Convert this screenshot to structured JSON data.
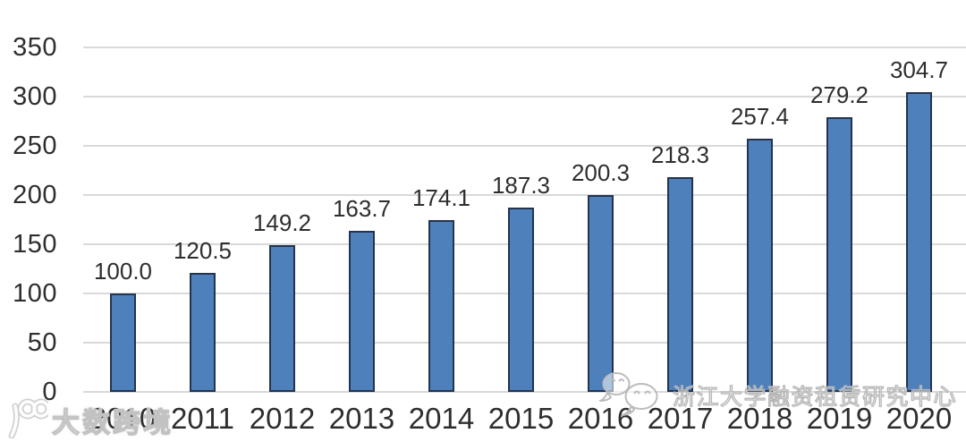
{
  "chart_data": {
    "type": "bar",
    "title": "",
    "xlabel": "",
    "ylabel": "",
    "categories": [
      "2010",
      "2011",
      "2012",
      "2013",
      "2014",
      "2015",
      "2016",
      "2017",
      "2018",
      "2019",
      "2020"
    ],
    "values": [
      100.0,
      120.5,
      149.2,
      163.7,
      174.1,
      187.3,
      200.3,
      218.3,
      257.4,
      279.2,
      304.7
    ],
    "data_labels": [
      "100.0",
      "120.5",
      "149.2",
      "163.7",
      "174.1",
      "187.3",
      "200.3",
      "218.3",
      "257.4",
      "279.2",
      "304.7"
    ],
    "ylim": [
      0,
      350
    ],
    "ytick_step": 50,
    "yticks": [
      "0",
      "50",
      "100",
      "150",
      "200",
      "250",
      "300",
      "350"
    ],
    "grid": true,
    "legend": "none",
    "colors": {
      "bar_fill": "#4e80bc",
      "bar_border": "#233450",
      "gridline": "#d9d9d9",
      "text": "#2e2e2e",
      "background": "#ffffff"
    }
  },
  "watermarks": {
    "bottom_left": {
      "icon": "dashukuajing-100-logo",
      "text": "大数跨境"
    },
    "bottom_right": {
      "icon": "wechat-icon",
      "text": "浙江大学融资租赁研究中心"
    }
  }
}
